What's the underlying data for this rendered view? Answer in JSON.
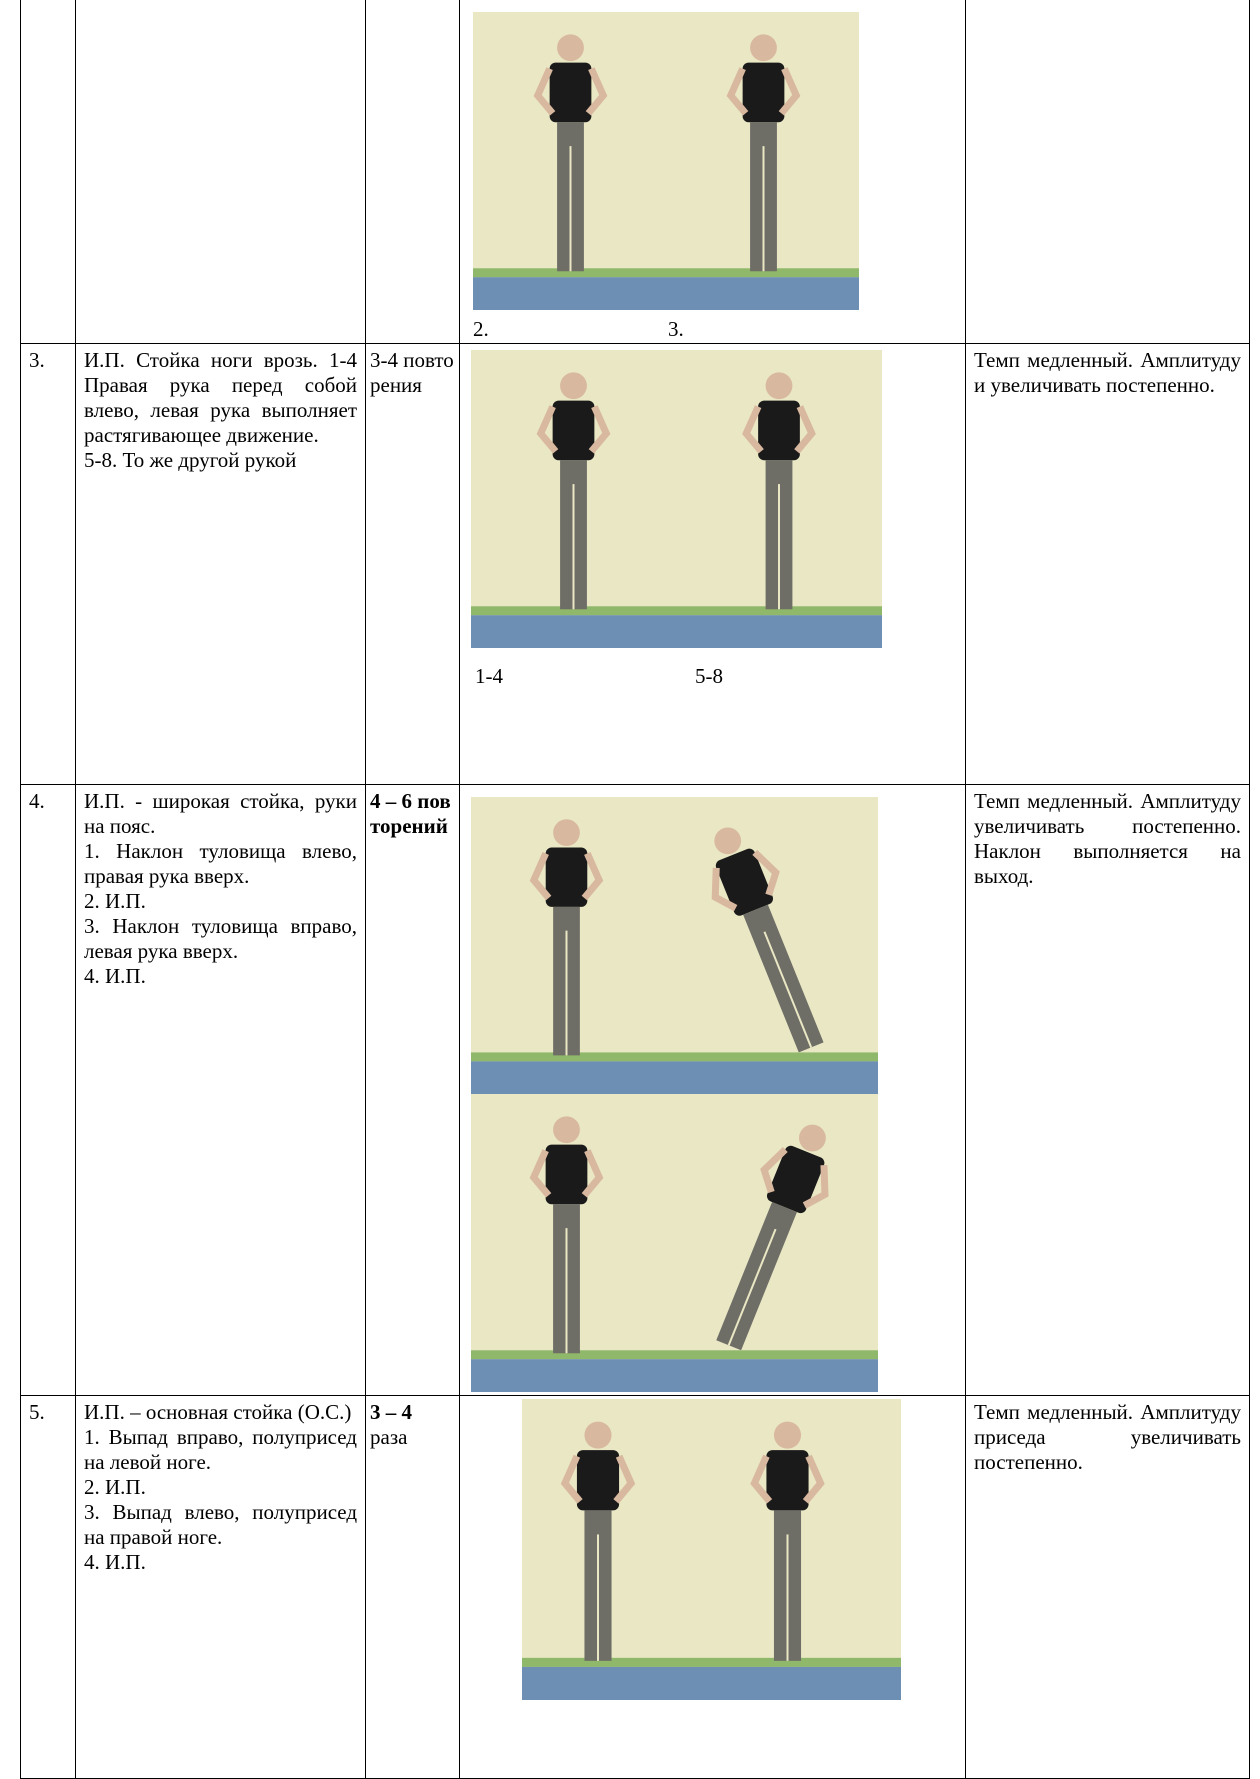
{
  "table": {
    "rows": [
      {
        "num": "",
        "description": [],
        "reps": [],
        "photo_labels": [
          "2.",
          "3."
        ],
        "notes": ""
      },
      {
        "num": "3.",
        "description": [
          "И.П. Стойка ноги врозь. 1-4 Правая рука перед собой влево, левая рука выполняет растягивающее движение.",
          "5-8. То же другой рукой"
        ],
        "reps": [
          {
            "text": "3-4 повторения",
            "bold": false
          }
        ],
        "photo_labels": [
          "1-4",
          "5-8"
        ],
        "notes": "Темп медленный. Амплитуду и увеличивать постепенно."
      },
      {
        "num": "4.",
        "description": [
          "И.П. - широкая стойка, руки на пояс.",
          "1. Наклон туловища влево, правая рука вверх.",
          "2. И.П.",
          "3. Наклон туловища вправо, левая рука вверх.",
          "4. И.П."
        ],
        "reps": [
          {
            "text": "4 – 6 повторений",
            "bold": true
          }
        ],
        "photo_labels": [],
        "notes": "Темп медленный. Амплитуду увеличивать постепенно. Наклон выполняется на выход."
      },
      {
        "num": "5.",
        "description": [
          "И.П. – основная стойка (О.С.)",
          "1. Выпад вправо, полуприсед на левой ноге.",
          "2. И.П.",
          "3. Выпад влево, полуприсед на правой ноге.",
          "4. И.П."
        ],
        "reps": [
          {
            "text": "3 – 4",
            "bold": true
          },
          {
            "text": "раза",
            "bold": false
          }
        ],
        "photo_labels": [],
        "notes": "Темп медленный. Амплитуду приседа увеличивать постепенно."
      }
    ]
  }
}
